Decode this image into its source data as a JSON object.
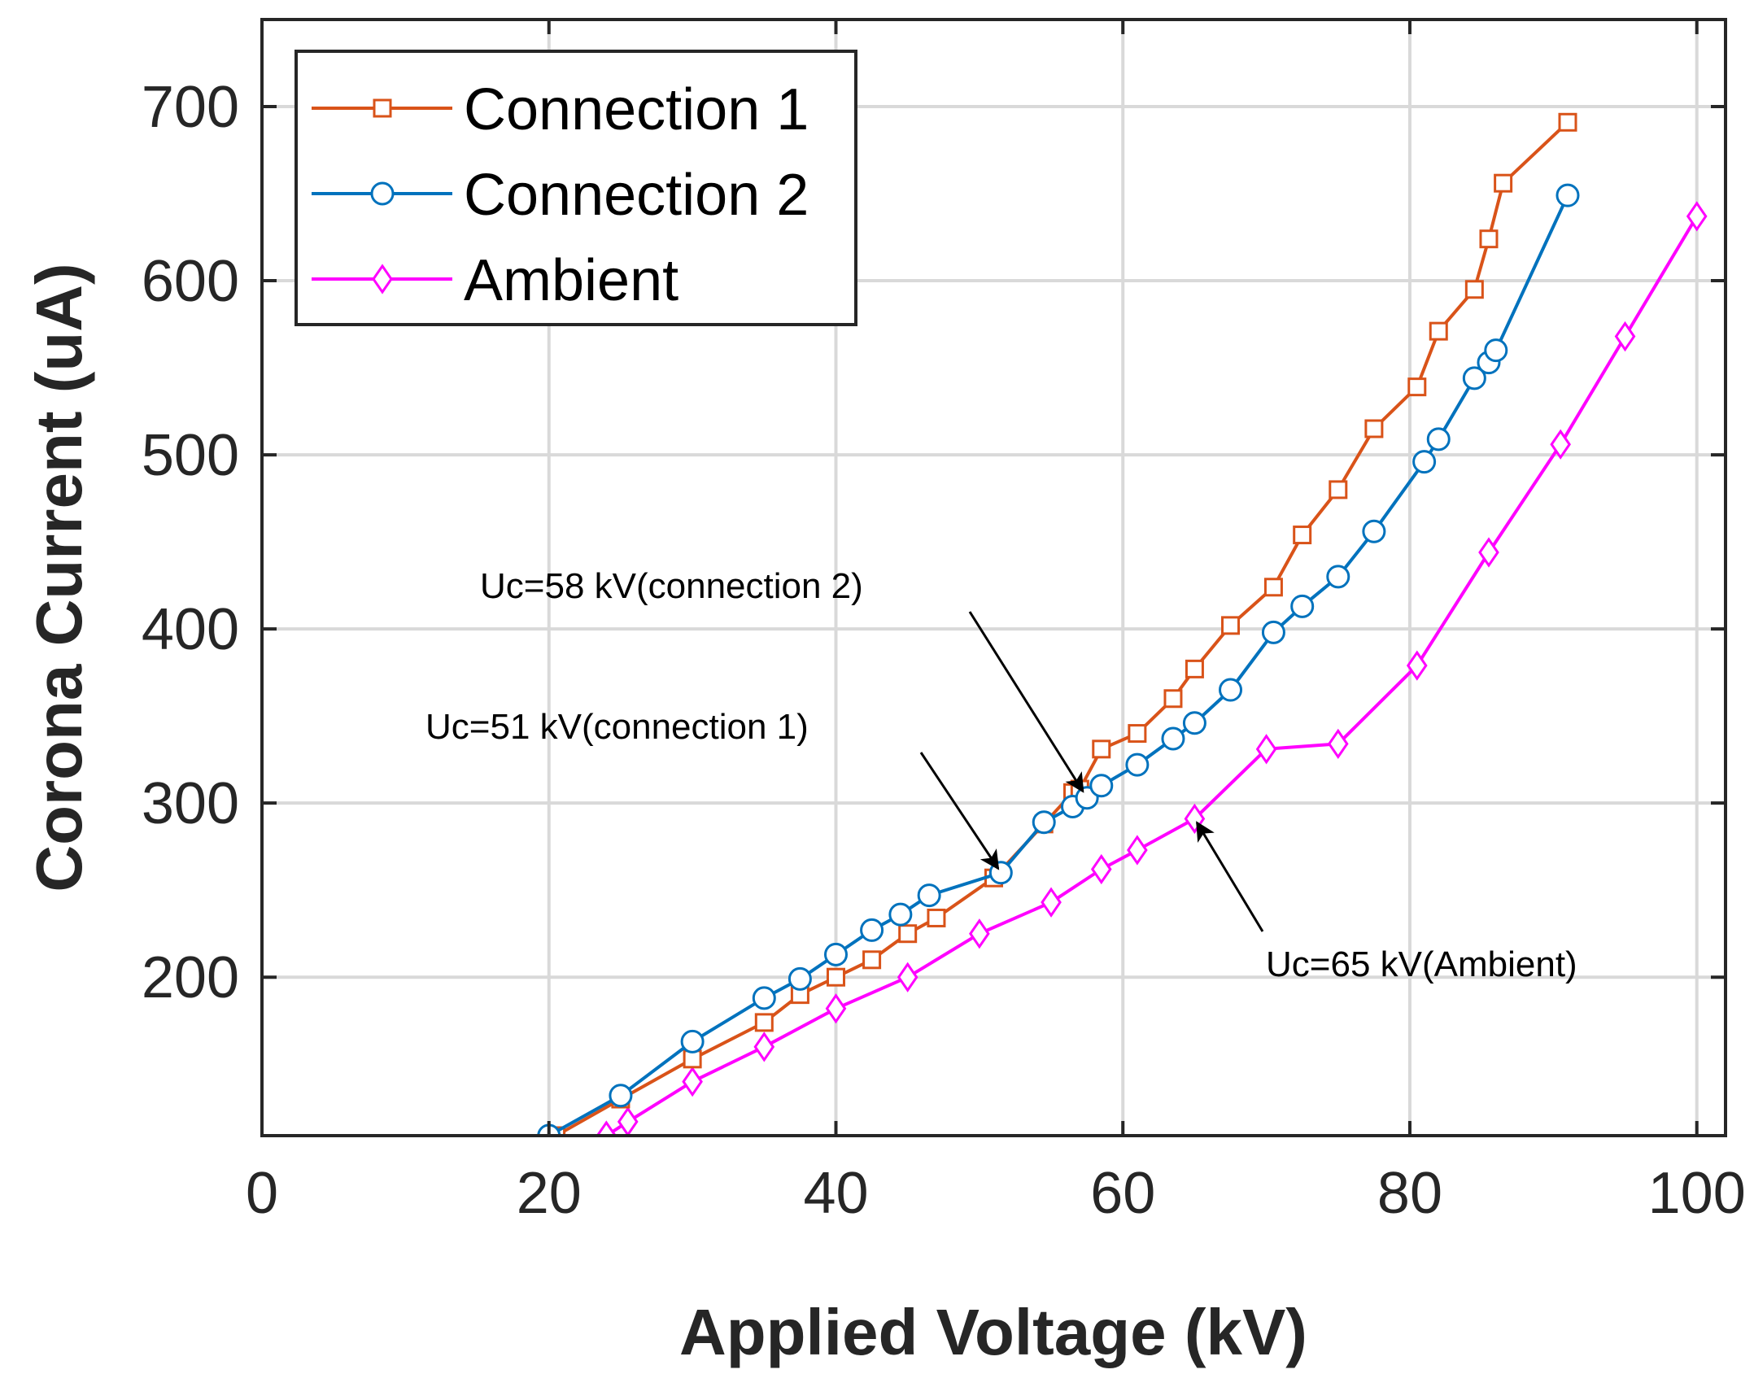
{
  "chart_data": {
    "type": "line",
    "title": "",
    "xlabel": "Applied Voltage (kV)",
    "ylabel": "Corona Current (uA)",
    "xlim": [
      0,
      102
    ],
    "ylim": [
      109,
      750
    ],
    "xticks": [
      0,
      20,
      40,
      60,
      80,
      100
    ],
    "yticks": [
      200,
      300,
      400,
      500,
      600,
      700
    ],
    "grid": true,
    "legend_position": "top-left",
    "series": [
      {
        "name": "Connection 1",
        "color": "#D95319",
        "marker": "square",
        "x": [
          20.5,
          25,
          30,
          35,
          37.5,
          40,
          42.5,
          45,
          47,
          51,
          54.5,
          56.5,
          57,
          58.5,
          61,
          63.5,
          65,
          67.5,
          70.5,
          72.5,
          75,
          77.5,
          80.5,
          82,
          84.5,
          85.5,
          86.5,
          91
        ],
        "y": [
          109,
          130,
          153,
          174,
          190,
          200,
          210,
          225,
          234,
          257,
          288,
          306,
          308,
          331,
          340,
          360,
          377,
          402,
          424,
          454,
          480,
          515,
          539,
          571,
          595,
          624,
          656,
          691
        ]
      },
      {
        "name": "Connection 2",
        "color": "#0072BD",
        "marker": "circle",
        "x": [
          20,
          25,
          30,
          35,
          37.5,
          40,
          42.5,
          44.5,
          46.5,
          51.5,
          54.5,
          56.5,
          57.5,
          58.5,
          61,
          63.5,
          65,
          67.5,
          70.5,
          72.5,
          75,
          77.5,
          81,
          82,
          84.5,
          85.5,
          86,
          91
        ],
        "y": [
          109,
          132,
          163,
          188,
          199,
          213,
          227,
          236,
          247,
          260,
          289,
          298,
          303,
          310,
          322,
          337,
          346,
          365,
          398,
          413,
          430,
          456,
          496,
          509,
          544,
          553,
          560,
          649
        ]
      },
      {
        "name": "Ambient",
        "color": "#FF00FF",
        "marker": "diamond",
        "x": [
          24,
          25.5,
          30,
          35,
          40,
          45,
          50,
          55,
          58.5,
          61,
          65,
          70,
          75,
          80.5,
          85.5,
          90.5,
          95,
          100
        ],
        "y": [
          109,
          117,
          140,
          160,
          182,
          200,
          225,
          243,
          262,
          273,
          291,
          331,
          334,
          379,
          444,
          506,
          568,
          637
        ]
      }
    ],
    "annotations": [
      {
        "text": "Uc=58 kV(connection 2)",
        "target": [
          57.5,
          303
        ]
      },
      {
        "text": "Uc=51 kV(connection 1)",
        "target": [
          51.5,
          260
        ]
      },
      {
        "text": "Uc=65 kV(Ambient)",
        "target": [
          65,
          291
        ]
      }
    ]
  }
}
